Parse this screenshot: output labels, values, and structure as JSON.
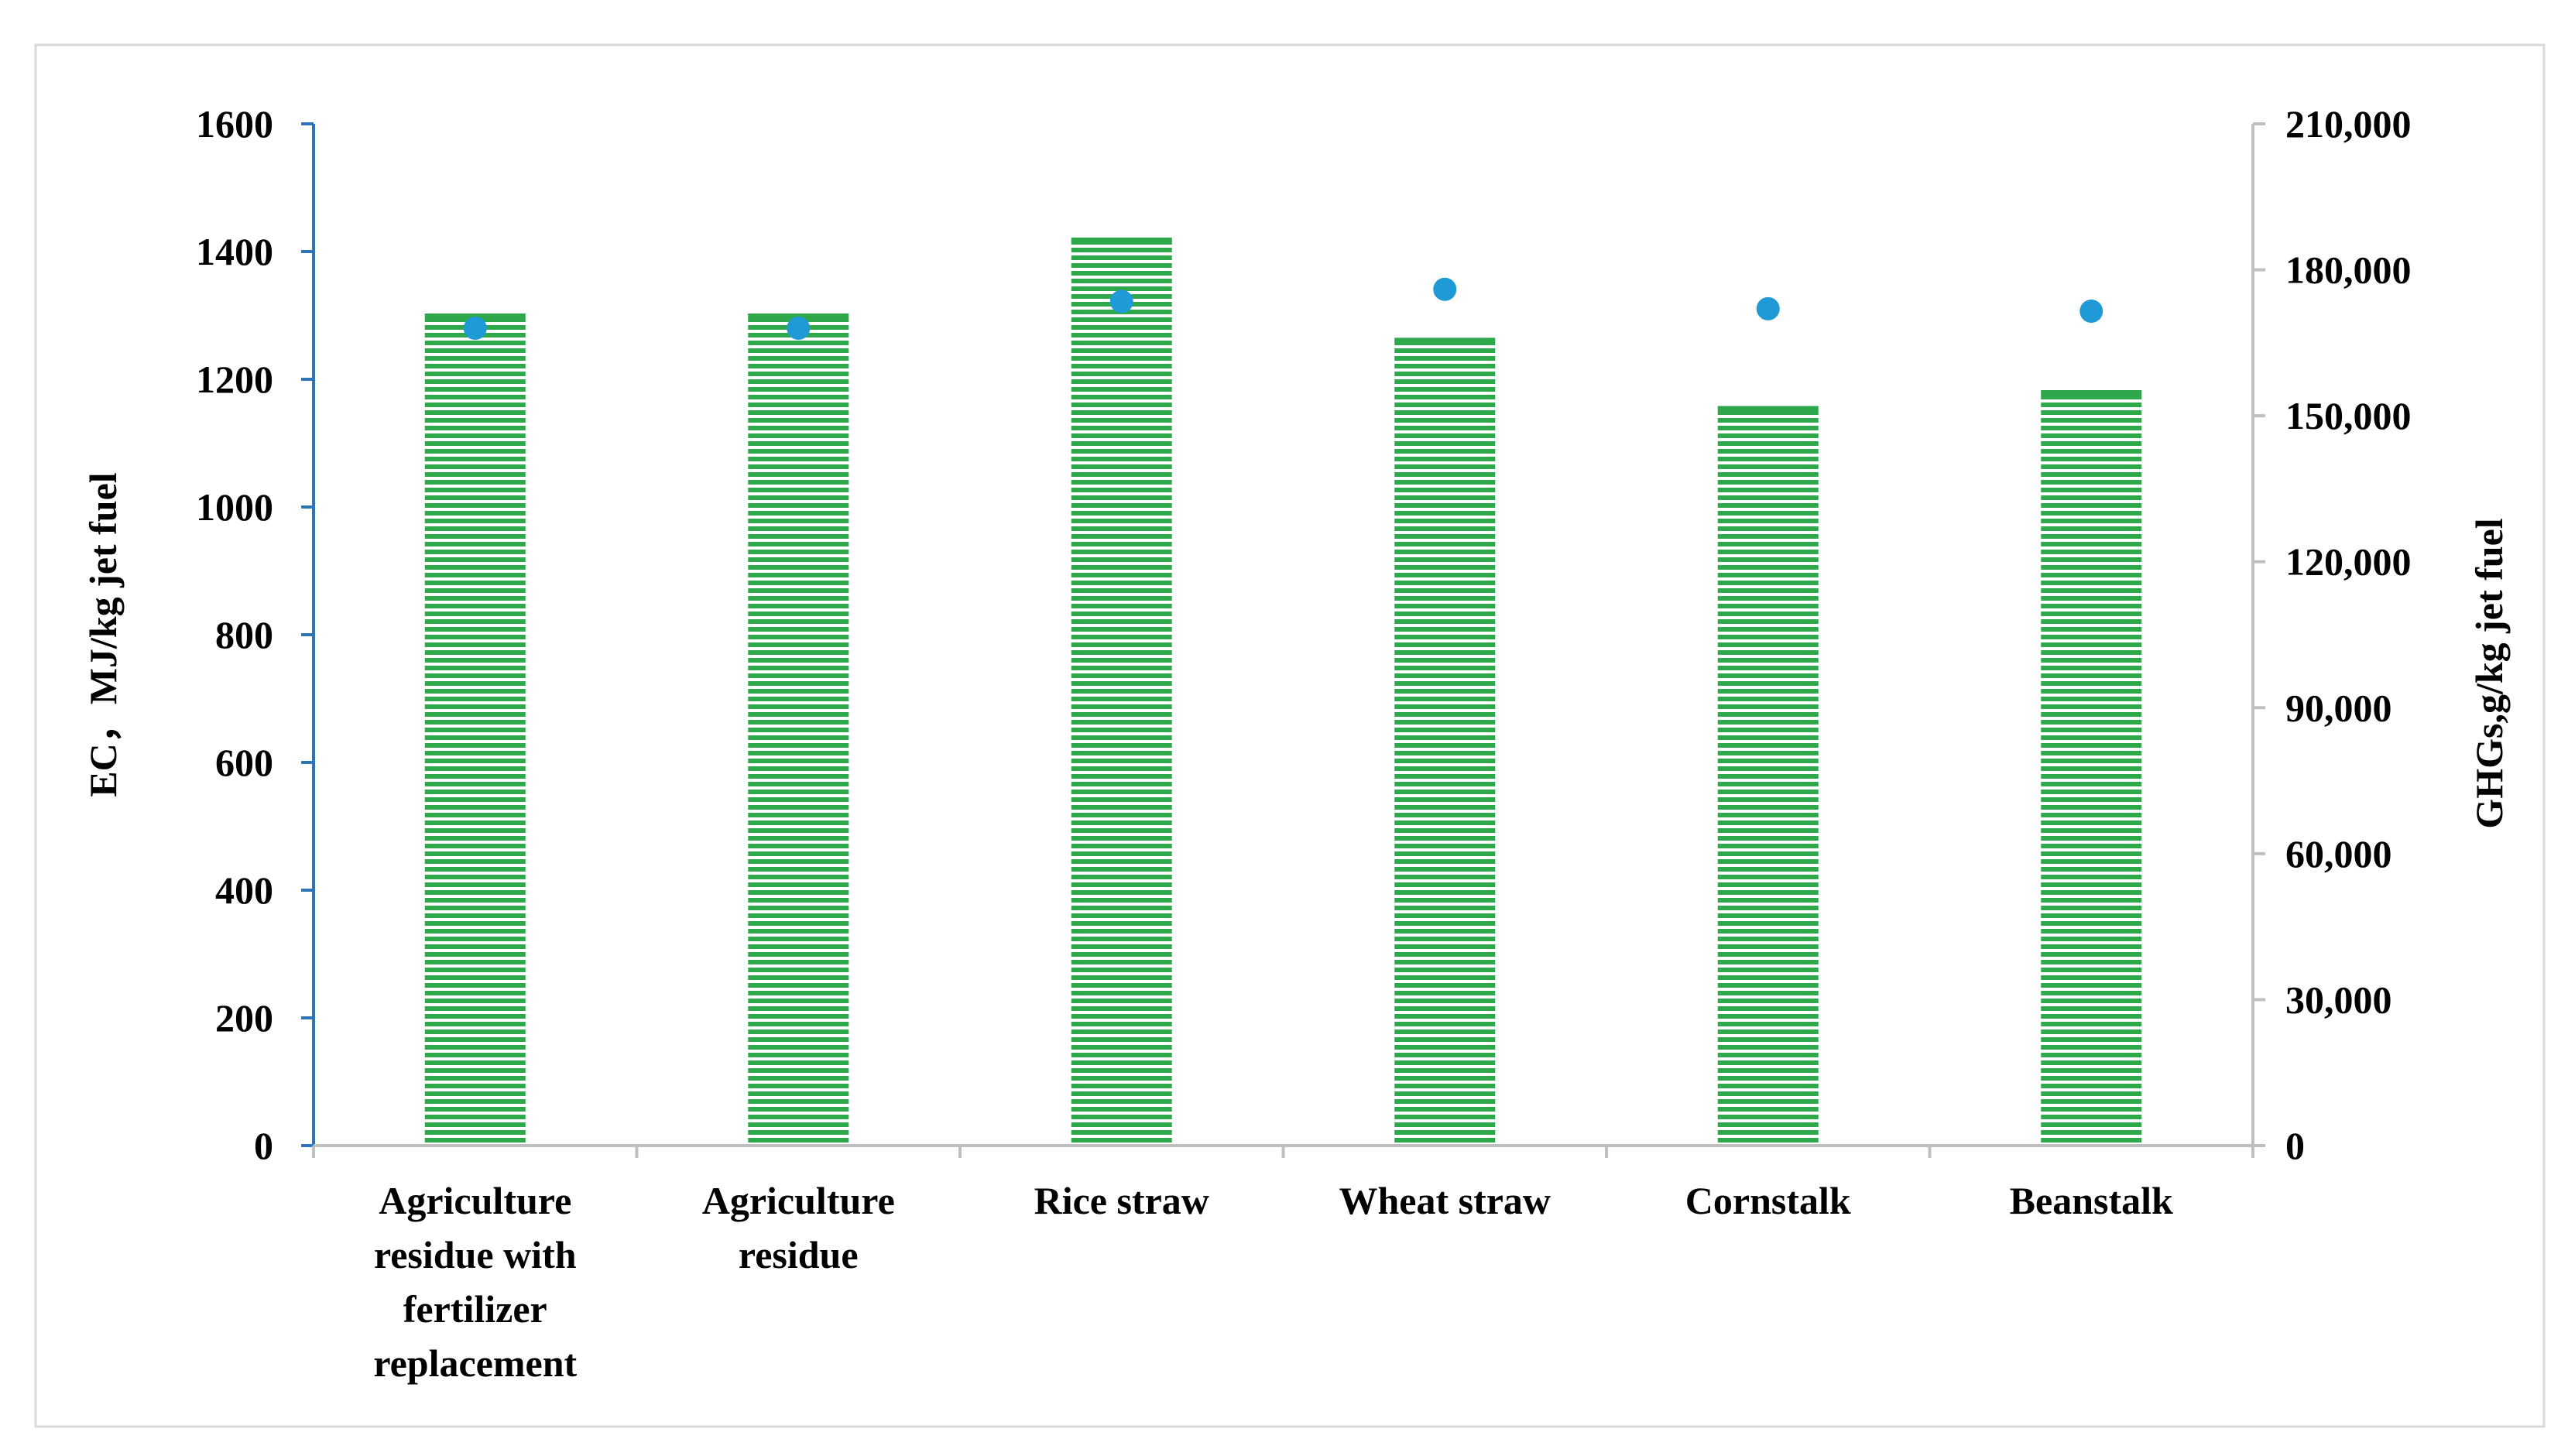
{
  "chart_data": {
    "type": "bar",
    "categories": [
      [
        "Agriculture",
        "residue with",
        "fertilizer",
        "replacement"
      ],
      [
        "Agriculture",
        "residue"
      ],
      [
        "Rice straw"
      ],
      [
        "Wheat straw"
      ],
      [
        "Cornstalk"
      ],
      [
        "Beanstalk"
      ]
    ],
    "series": [
      {
        "type": "bar",
        "axis": "left",
        "color": "#2ea84a",
        "values": [
          1303,
          1303,
          1422,
          1265,
          1158,
          1183
        ]
      },
      {
        "type": "scatter",
        "axis": "right",
        "color": "#1f9ad6",
        "values": [
          168000,
          168000,
          173500,
          176000,
          172000,
          171500
        ]
      }
    ],
    "ylabel": "EC，MJ/kg jet fuel",
    "y2label": "GHGs,g/kg jet fuel",
    "ylim": [
      0,
      1600
    ],
    "y2lim": [
      0,
      210000
    ],
    "yticks": [
      "0",
      "200",
      "400",
      "600",
      "800",
      "1000",
      "1200",
      "1400",
      "1600"
    ],
    "y2ticks": [
      "0",
      "30,000",
      "60,000",
      "90,000",
      "120,000",
      "150,000",
      "180,000",
      "210,000"
    ],
    "grid": false,
    "legend": "none",
    "left_axis_color": "#2e75b6",
    "right_axis_color": "#bfbfbf"
  }
}
